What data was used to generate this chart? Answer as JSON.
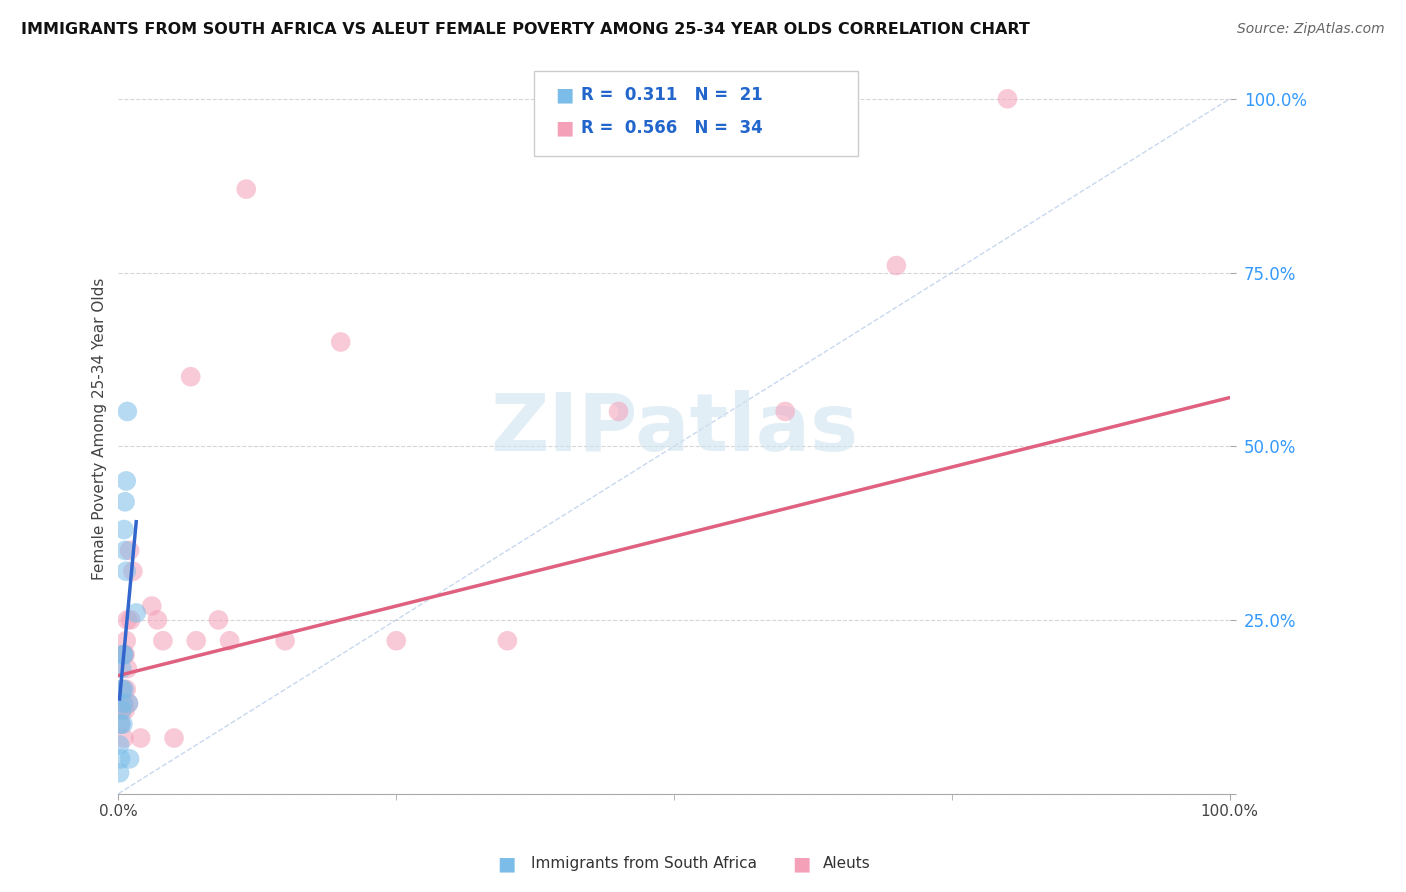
{
  "title": "IMMIGRANTS FROM SOUTH AFRICA VS ALEUT FEMALE POVERTY AMONG 25-34 YEAR OLDS CORRELATION CHART",
  "source": "Source: ZipAtlas.com",
  "ylabel": "Female Poverty Among 25-34 Year Olds",
  "y_ticks": [
    0.0,
    0.25,
    0.5,
    0.75,
    1.0
  ],
  "y_tick_labels": [
    "",
    "25.0%",
    "50.0%",
    "75.0%",
    "100.0%"
  ],
  "x_tick_positions": [
    0.0,
    1.0
  ],
  "x_tick_labels": [
    "0.0%",
    "100.0%"
  ],
  "legend_blue_r": "0.311",
  "legend_blue_n": "21",
  "legend_pink_r": "0.566",
  "legend_pink_n": "34",
  "legend_blue_label": "Immigrants from South Africa",
  "legend_pink_label": "Aleuts",
  "blue_color": "#7bbde8",
  "pink_color": "#f4a0b8",
  "blue_line_color": "#3366cc",
  "pink_line_color": "#e06080",
  "diagonal_color": "#b0c8e8",
  "watermark_text": "ZIPatlas",
  "blue_points_x": [
    0.001,
    0.001,
    0.002,
    0.002,
    0.003,
    0.003,
    0.003,
    0.004,
    0.004,
    0.004,
    0.005,
    0.005,
    0.005,
    0.006,
    0.006,
    0.007,
    0.007,
    0.008,
    0.009,
    0.01,
    0.016
  ],
  "blue_points_y": [
    0.03,
    0.07,
    0.05,
    0.1,
    0.12,
    0.15,
    0.18,
    0.1,
    0.13,
    0.2,
    0.15,
    0.2,
    0.38,
    0.35,
    0.42,
    0.32,
    0.45,
    0.55,
    0.13,
    0.05,
    0.26
  ],
  "pink_points_x": [
    0.002,
    0.003,
    0.004,
    0.005,
    0.005,
    0.005,
    0.006,
    0.006,
    0.007,
    0.007,
    0.008,
    0.008,
    0.009,
    0.01,
    0.011,
    0.013,
    0.02,
    0.03,
    0.035,
    0.04,
    0.05,
    0.065,
    0.07,
    0.09,
    0.1,
    0.115,
    0.15,
    0.2,
    0.25,
    0.35,
    0.45,
    0.6,
    0.7,
    0.8
  ],
  "pink_points_y": [
    0.1,
    0.12,
    0.15,
    0.08,
    0.13,
    0.2,
    0.12,
    0.2,
    0.15,
    0.22,
    0.18,
    0.25,
    0.13,
    0.35,
    0.25,
    0.32,
    0.08,
    0.27,
    0.25,
    0.22,
    0.08,
    0.6,
    0.22,
    0.25,
    0.22,
    0.87,
    0.22,
    0.65,
    0.22,
    0.22,
    0.55,
    0.55,
    0.76,
    1.0
  ],
  "xlim": [
    0.0,
    1.0
  ],
  "ylim": [
    0.0,
    1.05
  ],
  "pink_line_x": [
    0.0,
    1.0
  ],
  "pink_line_y": [
    0.17,
    0.57
  ],
  "blue_line_x_start": 0.001,
  "blue_line_x_end": 0.016
}
